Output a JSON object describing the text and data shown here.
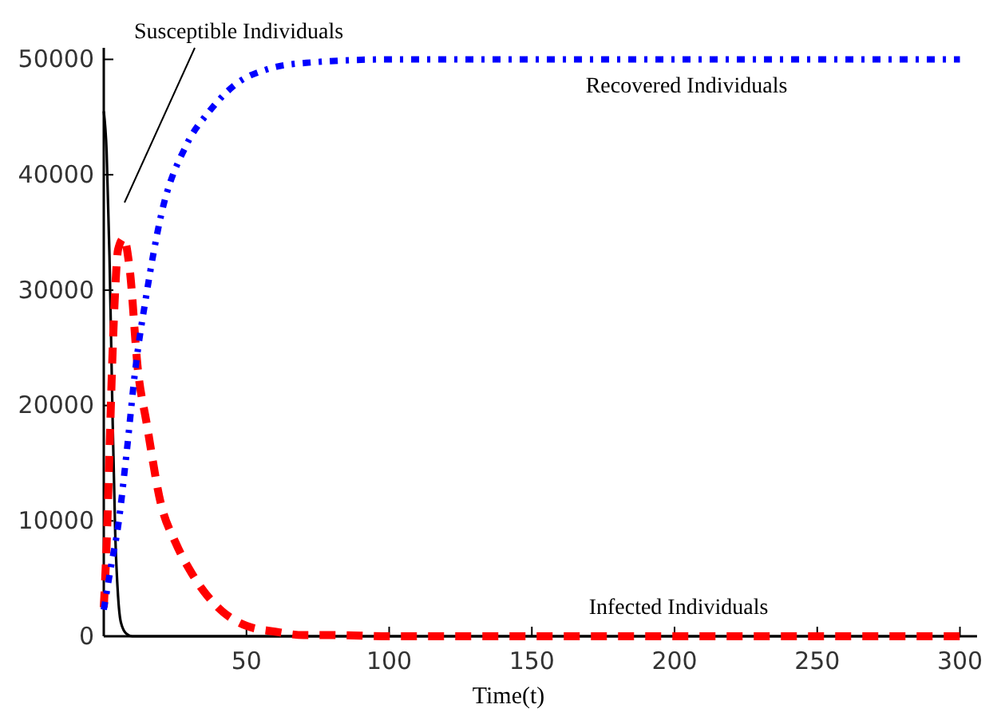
{
  "chart_data": {
    "type": "line",
    "xlabel": "Time(t)",
    "xlim": [
      0,
      306
    ],
    "ylim": [
      0,
      51000
    ],
    "xticks": [
      50,
      100,
      150,
      200,
      250,
      300
    ],
    "yticks": [
      0,
      10000,
      20000,
      30000,
      40000,
      50000
    ],
    "grid": false,
    "series": [
      {
        "name": "Susceptible Individuals",
        "color": "#000000",
        "line_style": "solid",
        "x": [
          0,
          1,
          2,
          3,
          4,
          5,
          6,
          8,
          10,
          20,
          50,
          100,
          200,
          300
        ],
        "values": [
          45500,
          42000,
          33000,
          20000,
          9000,
          3500,
          1200,
          200,
          0,
          0,
          0,
          0,
          0,
          0
        ]
      },
      {
        "name": "Infected Individuals",
        "color": "#ff0000",
        "line_style": "dashed",
        "x": [
          0,
          1,
          2,
          3,
          4,
          5,
          7,
          9,
          12,
          15,
          20,
          25,
          30,
          40,
          50,
          60,
          70,
          80,
          100,
          150,
          200,
          250,
          300
        ],
        "values": [
          2500,
          8000,
          16000,
          24000,
          30000,
          33500,
          34500,
          32000,
          23000,
          18500,
          11500,
          8200,
          5800,
          2500,
          900,
          400,
          100,
          100,
          0,
          0,
          0,
          0,
          0
        ]
      },
      {
        "name": "Recovered Individuals",
        "color": "#0000ff",
        "line_style": "dotted",
        "x": [
          0,
          2.5,
          5,
          8,
          11,
          15,
          20,
          29,
          37,
          46,
          58,
          71,
          100,
          150,
          200,
          250,
          300
        ],
        "values": [
          2300,
          6000,
          9500,
          15900,
          23000,
          29700,
          36400,
          42600,
          45500,
          47800,
          49200,
          49700,
          50000,
          50000,
          50000,
          50000,
          50000
        ]
      }
    ]
  }
}
